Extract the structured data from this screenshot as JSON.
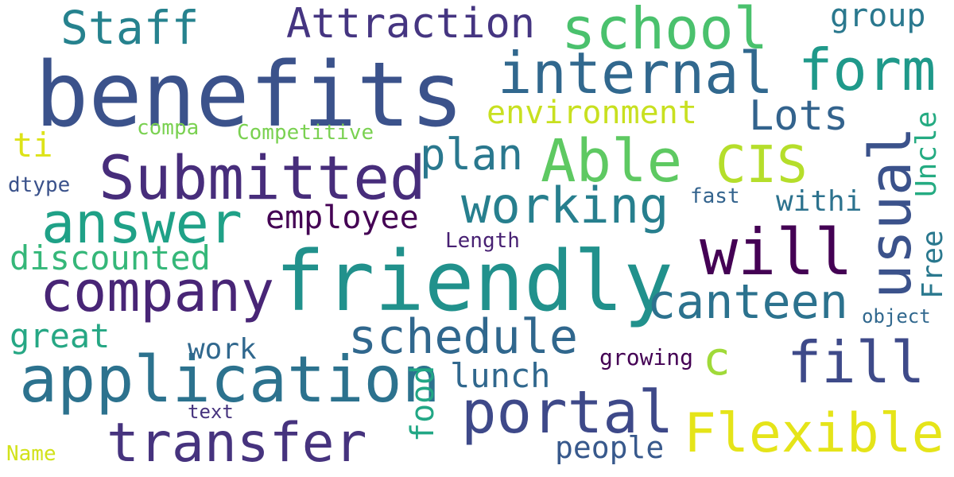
{
  "words": {
    "benefits": {
      "text": "benefits",
      "color": "#3b528b"
    },
    "friendly": {
      "text": "friendly",
      "color": "#21918c"
    },
    "application": {
      "text": "application",
      "color": "#2c728e"
    },
    "submitted": {
      "text": "Submitted",
      "color": "#472d7b"
    },
    "internal": {
      "text": "internal",
      "color": "#31688e"
    },
    "form": {
      "text": "form",
      "color": "#1f998a"
    },
    "school": {
      "text": "school",
      "color": "#4ac16d"
    },
    "answer": {
      "text": "answer",
      "color": "#1fa187"
    },
    "company": {
      "text": "company",
      "color": "#482576"
    },
    "portal": {
      "text": "portal",
      "color": "#3e4989"
    },
    "transfer": {
      "text": "transfer",
      "color": "#46337e"
    },
    "will": {
      "text": "will",
      "color": "#440154"
    },
    "usual": {
      "text": "usual",
      "color": "#3b528b"
    },
    "flexible": {
      "text": "Flexible",
      "color": "#e5e419"
    },
    "able": {
      "text": "Able",
      "color": "#5ec962"
    },
    "cis": {
      "text": "CIS",
      "color": "#b5de2b"
    },
    "working": {
      "text": "working",
      "color": "#277f8e"
    },
    "canteen": {
      "text": "canteen",
      "color": "#2c728e"
    },
    "schedule": {
      "text": "schedule",
      "color": "#30678d"
    },
    "fill": {
      "text": "fill",
      "color": "#3e4a89"
    },
    "attraction": {
      "text": "Attraction",
      "color": "#453581"
    },
    "staff": {
      "text": "Staff",
      "color": "#26828e"
    },
    "plan": {
      "text": "plan",
      "color": "#2a788e"
    },
    "employee": {
      "text": "employee",
      "color": "#440154"
    },
    "lots": {
      "text": "Lots",
      "color": "#33638d"
    },
    "environment": {
      "text": "environment",
      "color": "#c8e020"
    },
    "discounted": {
      "text": "discounted",
      "color": "#35b779"
    },
    "great": {
      "text": "great",
      "color": "#26a784"
    },
    "c": {
      "text": "c",
      "color": "#a0da39"
    },
    "lunch": {
      "text": "lunch",
      "color": "#31688e"
    },
    "food": {
      "text": "food",
      "color": "#22a785"
    },
    "free": {
      "text": "Free",
      "color": "#2a788e"
    },
    "uncle": {
      "text": "Uncle",
      "color": "#25ab82"
    },
    "people": {
      "text": "people",
      "color": "#38598c"
    },
    "group": {
      "text": "group",
      "color": "#2a788e"
    },
    "withi": {
      "text": "withi",
      "color": "#2c728e"
    },
    "work": {
      "text": "work",
      "color": "#31688e"
    },
    "ti": {
      "text": "ti",
      "color": "#dde318"
    },
    "growing": {
      "text": "growing",
      "color": "#440154"
    },
    "competitive": {
      "text": "Competitive",
      "color": "#7ad151"
    },
    "compa": {
      "text": "compa",
      "color": "#7ad151"
    },
    "dtype": {
      "text": "dtype",
      "color": "#3b528b"
    },
    "fast": {
      "text": "fast",
      "color": "#33638d"
    },
    "length": {
      "text": "Length",
      "color": "#482173"
    },
    "object": {
      "text": "object",
      "color": "#31688e"
    },
    "text": {
      "text": "text",
      "color": "#46337e"
    },
    "name": {
      "text": "Name",
      "color": "#d2e21b"
    }
  }
}
